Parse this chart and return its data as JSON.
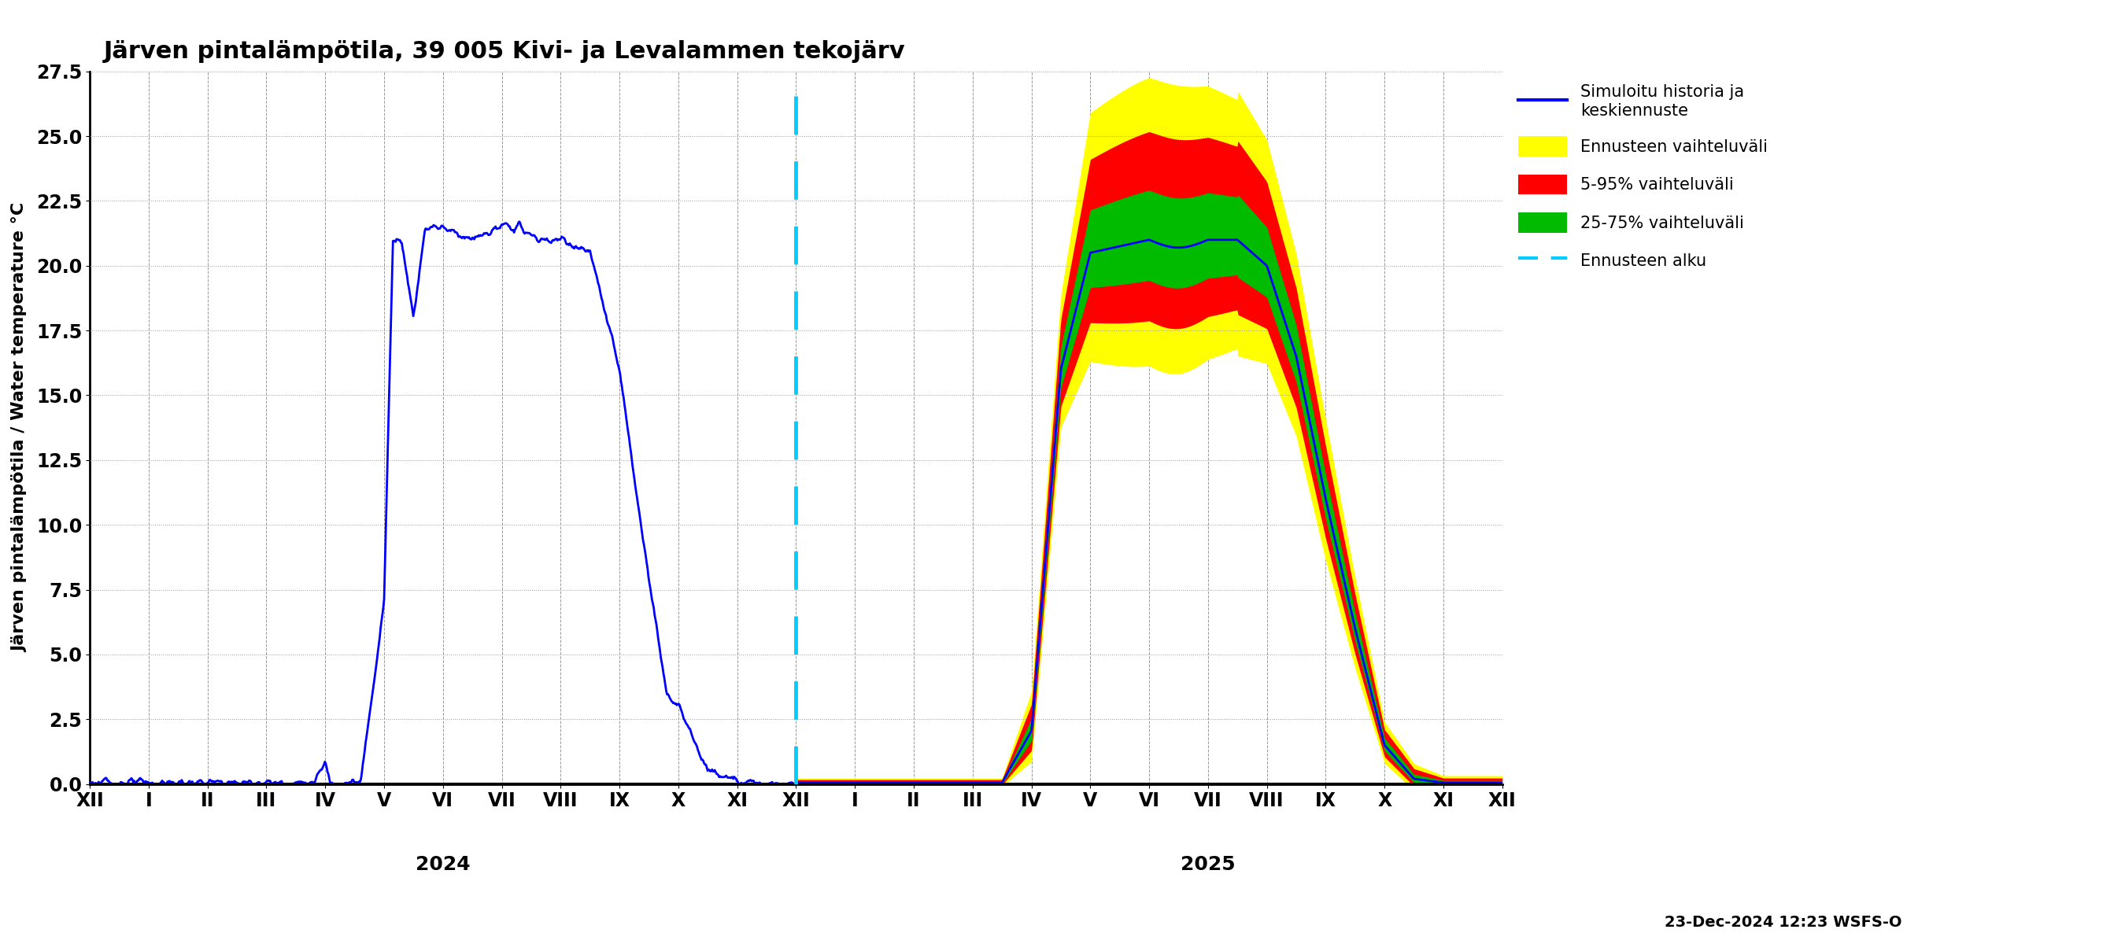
{
  "title": "Järven pintalämpötila, 39 005 Kivi- ja Levalammen tekojärv",
  "ylabel": "Järven pintalämpötila / Water temperature °C",
  "timestamp": "23-Dec-2024 12:23 WSFS-O",
  "ylim": [
    0.0,
    27.5
  ],
  "yticks": [
    0.0,
    2.5,
    5.0,
    7.5,
    10.0,
    12.5,
    15.0,
    17.5,
    20.0,
    22.5,
    25.0,
    27.5
  ],
  "legend_labels": [
    "Simuloitu historia ja\nkeskiennuste",
    "Ennusteen vaihteluväli",
    "5-95% vaihteluväli",
    "25-75% vaihteluväli",
    "Ennusteen alku"
  ],
  "hist_color": "#0000ff",
  "band_yellow": "#ffff00",
  "band_red": "#ff0000",
  "band_green": "#00bb00",
  "median_color": "#0000ff",
  "vline_color": "#00ccff",
  "background_color": "#ffffff",
  "grid_color": "#999999",
  "x_tick_labels": [
    "XII",
    "I",
    "II",
    "III",
    "IV",
    "V",
    "VI",
    "VII",
    "VIII",
    "IX",
    "X",
    "XI",
    "XII",
    "I",
    "II",
    "III",
    "IV",
    "V",
    "VI",
    "VII",
    "VIII",
    "IX",
    "X",
    "XI",
    "XII"
  ],
  "year_2024_x": 6.0,
  "year_2025_x": 19.0,
  "xlim": [
    0,
    24
  ],
  "forecast_start_x": 12.0
}
